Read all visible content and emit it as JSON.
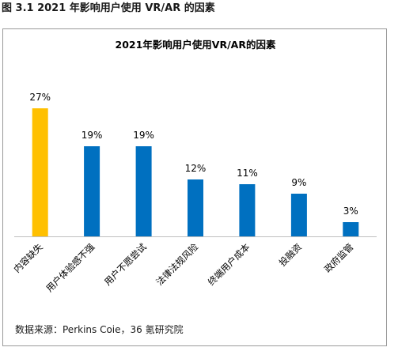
{
  "figure_caption": "图 3.1 2021 年影响用户使用 VR/AR 的因素",
  "source_note": "数据来源：Perkins Coie，36 氪研究院",
  "colors": {
    "highlight_bar": "#FFC000",
    "default_bar": "#0070C0",
    "axis": "#BFBFBF",
    "frame": "#9A9A9A"
  },
  "chart_data": {
    "type": "bar",
    "title": "2021年影响用户使用VR/AR的因素",
    "categories": [
      "内容缺失",
      "用户体验感不强",
      "用户不愿尝试",
      "法律法规风险",
      "终端用户成本",
      "投融资",
      "政府监管"
    ],
    "values": [
      27,
      19,
      19,
      12,
      11,
      9,
      3
    ],
    "data_labels": [
      "27%",
      "19%",
      "19%",
      "12%",
      "11%",
      "9%",
      "3%"
    ],
    "unit": "%",
    "ylim": [
      0,
      30
    ],
    "highlight_index": 0,
    "xlabel": "",
    "ylabel": "",
    "grid": false,
    "legend": "none"
  }
}
